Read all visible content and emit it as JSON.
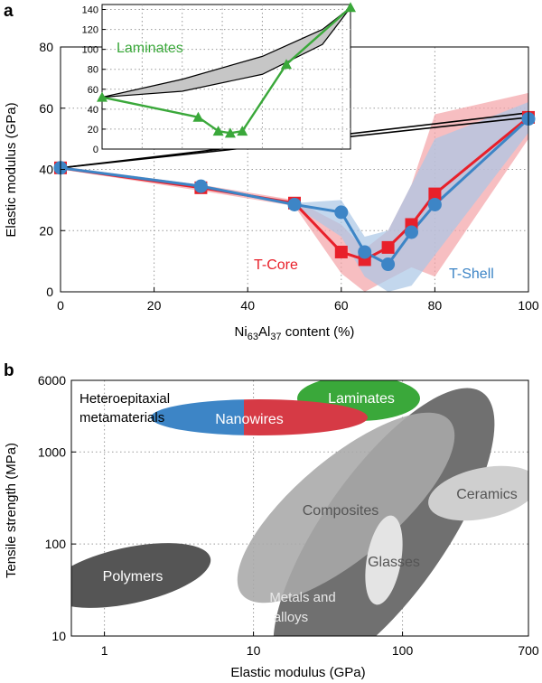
{
  "chart_data": [
    {
      "panel": "a",
      "type": "line",
      "xlabel": "Ni63Al37 content (%)",
      "xlabel_parts": {
        "pre": "Ni",
        "sub1": "63",
        "mid": "Al",
        "sub2": "37",
        "post": " content (%)"
      },
      "ylabel": "Elastic modulus (GPa)",
      "xlim": [
        0,
        100
      ],
      "ylim": [
        0,
        80
      ],
      "xticks": [
        0,
        20,
        40,
        60,
        80,
        100
      ],
      "yticks": [
        0,
        20,
        40,
        60,
        80
      ],
      "grid": true,
      "series": [
        {
          "name": "T-Core",
          "color": "#e8202a",
          "marker": "square",
          "x": [
            0,
            30,
            50,
            60,
            65,
            70,
            75,
            80,
            100
          ],
          "y": [
            40.5,
            34,
            29,
            13,
            10.5,
            14.5,
            22,
            32,
            57
          ]
        },
        {
          "name": "T-Shell",
          "color": "#3d85c6",
          "marker": "circle",
          "x": [
            0,
            30,
            50,
            60,
            65,
            70,
            75,
            80,
            100
          ],
          "y": [
            40.5,
            34.5,
            28.5,
            26,
            13,
            9,
            19.5,
            28.5,
            56.5
          ]
        }
      ],
      "bands": [
        {
          "series": "T-Core",
          "color": "#f4a3a6",
          "upper": [
            [
              0,
              41
            ],
            [
              30,
              35
            ],
            [
              50,
              30
            ],
            [
              60,
              22
            ],
            [
              65,
              14
            ],
            [
              70,
              20
            ],
            [
              75,
              35
            ],
            [
              80,
              58
            ],
            [
              100,
              65
            ]
          ],
          "lower": [
            [
              0,
              40
            ],
            [
              30,
              33
            ],
            [
              50,
              28
            ],
            [
              60,
              6
            ],
            [
              65,
              0
            ],
            [
              70,
              4
            ],
            [
              75,
              8
            ],
            [
              80,
              5
            ],
            [
              100,
              50
            ]
          ]
        },
        {
          "series": "T-Shell",
          "color": "#a9c6e6",
          "upper": [
            [
              0,
              41
            ],
            [
              30,
              35
            ],
            [
              50,
              29
            ],
            [
              60,
              30
            ],
            [
              65,
              18
            ],
            [
              70,
              20
            ],
            [
              75,
              35
            ],
            [
              80,
              50
            ],
            [
              100,
              62
            ]
          ],
          "lower": [
            [
              0,
              40
            ],
            [
              30,
              34
            ],
            [
              50,
              28
            ],
            [
              60,
              18
            ],
            [
              65,
              5
            ],
            [
              70,
              0
            ],
            [
              75,
              2
            ],
            [
              80,
              12
            ],
            [
              100,
              52
            ]
          ]
        }
      ],
      "bounds_lines": {
        "x": [
          0,
          100
        ],
        "y1": [
          40.5,
          57
        ],
        "y2": [
          40.5,
          58.5
        ]
      },
      "annotations": [
        "T-Core",
        "T-Shell"
      ],
      "inset": {
        "label": "Laminates",
        "color": "#3aa83a",
        "xlim": [
          0,
          62
        ],
        "ylim": [
          0,
          145
        ],
        "yticks": [
          0,
          20,
          40,
          60,
          80,
          100,
          120,
          140
        ],
        "x": [
          0,
          24,
          29,
          32,
          35,
          46,
          62
        ],
        "y": [
          52,
          32,
          18,
          16,
          18,
          85,
          142
        ],
        "band_upper": [
          [
            0,
            52
          ],
          [
            20,
            70
          ],
          [
            40,
            93
          ],
          [
            55,
            120
          ],
          [
            62,
            142
          ]
        ],
        "band_lower": [
          [
            0,
            52
          ],
          [
            20,
            58
          ],
          [
            40,
            75
          ],
          [
            55,
            105
          ],
          [
            62,
            142
          ]
        ]
      }
    },
    {
      "panel": "b",
      "type": "ashby",
      "xlabel": "Elastic modulus (GPa)",
      "ylabel": "Tensile strength (MPa)",
      "xscale": "log",
      "yscale": "log",
      "xlim": [
        0.6,
        700
      ],
      "ylim": [
        10,
        6000
      ],
      "xticks": [
        1,
        10,
        100,
        700
      ],
      "yticks": [
        10,
        100,
        1000,
        6000
      ],
      "grid": true,
      "corner_text": [
        "Heteroepitaxial",
        "metamaterials"
      ],
      "regions": [
        {
          "label": "Polymers",
          "color": "#555555"
        },
        {
          "label": "Metals and alloys",
          "color": "#707070"
        },
        {
          "label": "Composites",
          "color": "#a8a8a8"
        },
        {
          "label": "Glasses",
          "color": "#e4e4e4"
        },
        {
          "label": "Ceramics",
          "color": "#cfcfcf"
        },
        {
          "label": "Laminates",
          "color": "#3aa83a"
        },
        {
          "label": "Nanowires",
          "color": "#3d85c6",
          "color2": "#d63a45"
        }
      ]
    }
  ],
  "panel_labels": [
    "a",
    "b"
  ]
}
